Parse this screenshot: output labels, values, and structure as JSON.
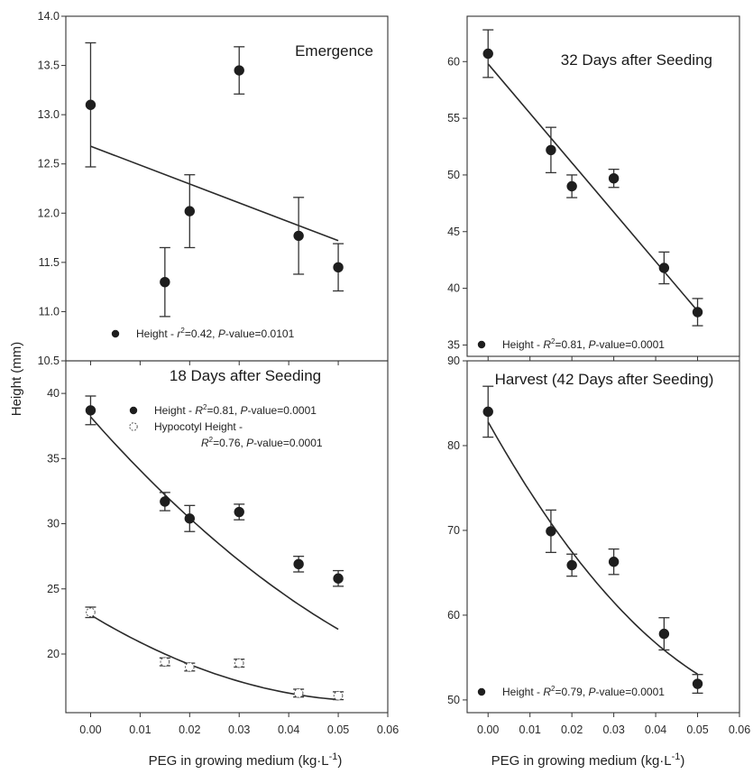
{
  "figure": {
    "ylabel": "Height (mm)",
    "xlabel_left": "PEG in growing medium (kg·L",
    "xlabel_left_sup": "-1",
    "xlabel_left_end": ")",
    "xlabel_right": "PEG in growing medium (kg·L",
    "xlabel_right_sup": "-1",
    "xlabel_right_end": ")"
  },
  "chart_data": [
    {
      "id": "emergence",
      "type": "scatter",
      "title": "Emergence",
      "x_ticks": [
        "0.00",
        "0.01",
        "0.02",
        "0.03",
        "0.04",
        "0.05",
        "0.06"
      ],
      "xlim": [
        -0.005,
        0.06
      ],
      "ylim": [
        10.5,
        14.0
      ],
      "y_ticks": [
        "10.5",
        "11.0",
        "11.5",
        "12.0",
        "12.5",
        "13.0",
        "13.5",
        "14.0"
      ],
      "series": [
        {
          "name": "Height",
          "marker": "filled",
          "x": [
            0.0,
            0.015,
            0.02,
            0.03,
            0.042,
            0.05
          ],
          "y": [
            13.1,
            11.3,
            12.02,
            13.45,
            11.77,
            11.45
          ],
          "err": [
            0.63,
            0.35,
            0.37,
            0.24,
            0.39,
            0.24
          ],
          "fit": {
            "type": "linear",
            "x0": 0.0,
            "x1": 0.05,
            "y0": 12.68,
            "y1": 11.72
          },
          "legend_prefix": "Height - ",
          "legend_r": "r",
          "legend_sup": "2",
          "legend_stat": "=0.42, ",
          "legend_p": "P",
          "legend_pval": "-value=0.0101"
        }
      ]
    },
    {
      "id": "day32",
      "type": "scatter",
      "title": "32 Days after Seeding",
      "x_ticks": [
        "0.00",
        "0.01",
        "0.02",
        "0.03",
        "0.04",
        "0.05",
        "0.06"
      ],
      "xlim": [
        -0.005,
        0.06
      ],
      "ylim": [
        34,
        64
      ],
      "y_ticks": [
        "35",
        "40",
        "45",
        "50",
        "55",
        "60"
      ],
      "series": [
        {
          "name": "Height",
          "marker": "filled",
          "x": [
            0.0,
            0.015,
            0.02,
            0.03,
            0.042,
            0.05
          ],
          "y": [
            60.7,
            52.2,
            49.0,
            49.7,
            41.8,
            37.9
          ],
          "err": [
            2.1,
            2.0,
            1.0,
            0.8,
            1.4,
            1.2
          ],
          "fit": {
            "type": "linear",
            "x0": 0.0,
            "x1": 0.05,
            "y0": 59.8,
            "y1": 38.0
          },
          "legend_prefix": "Height - ",
          "legend_r": "R",
          "legend_sup": "2",
          "legend_stat": "=0.81, ",
          "legend_p": "P",
          "legend_pval": "-value=0.0001"
        }
      ]
    },
    {
      "id": "day18",
      "type": "scatter",
      "title": "18 Days after Seeding",
      "x_ticks": [
        "0.00",
        "0.01",
        "0.02",
        "0.03",
        "0.04",
        "0.05",
        "0.06"
      ],
      "xlim": [
        -0.005,
        0.06
      ],
      "ylim": [
        15.5,
        42.5
      ],
      "y_ticks": [
        "20",
        "25",
        "30",
        "35",
        "40"
      ],
      "series": [
        {
          "name": "Height",
          "marker": "filled",
          "x": [
            0.0,
            0.015,
            0.02,
            0.03,
            0.042,
            0.05
          ],
          "y": [
            38.7,
            31.7,
            30.4,
            30.9,
            26.9,
            25.8
          ],
          "err": [
            1.1,
            0.7,
            1.0,
            0.6,
            0.6,
            0.6
          ],
          "fit": {
            "type": "quadratic",
            "coef": [
              38.2,
              -430,
              2080
            ]
          },
          "legend_prefix": "Height - ",
          "legend_r": "R",
          "legend_sup": "2",
          "legend_stat": "=0.81, ",
          "legend_p": "P",
          "legend_pval": "-value=0.0001"
        },
        {
          "name": "Hypocotyl Height",
          "marker": "open",
          "x": [
            0.0,
            0.015,
            0.02,
            0.03,
            0.042,
            0.05
          ],
          "y": [
            23.2,
            19.4,
            19.0,
            19.3,
            17.0,
            16.8
          ],
          "err": [
            0.4,
            0.3,
            0.3,
            0.3,
            0.3,
            0.3
          ],
          "fit": {
            "type": "quadratic",
            "coef": [
              23.0,
              -230,
              2000
            ]
          },
          "legend_prefix": "Hypocotyl Height -",
          "legend_r": "R",
          "legend_sup": "2",
          "legend_stat": "=0.76, ",
          "legend_p": "P",
          "legend_pval": "-value=0.0001"
        }
      ]
    },
    {
      "id": "harvest",
      "type": "scatter",
      "title": "Harvest (42 Days after Seeding)",
      "x_ticks": [
        "0.00",
        "0.01",
        "0.02",
        "0.03",
        "0.04",
        "0.05",
        "0.06"
      ],
      "xlim": [
        -0.005,
        0.06
      ],
      "ylim": [
        48.5,
        90
      ],
      "y_ticks": [
        "50",
        "60",
        "70",
        "80",
        "90"
      ],
      "series": [
        {
          "name": "Height",
          "marker": "filled",
          "x": [
            0.0,
            0.015,
            0.02,
            0.03,
            0.042,
            0.05
          ],
          "y": [
            84.0,
            69.9,
            65.9,
            66.3,
            57.8,
            51.9
          ],
          "err": [
            3.0,
            2.5,
            1.3,
            1.5,
            1.9,
            1.1
          ],
          "fit": {
            "type": "quadratic",
            "coef": [
              82.8,
              -880,
              5700
            ]
          },
          "legend_prefix": "Height - ",
          "legend_r": "R",
          "legend_sup": "2",
          "legend_stat": "=0.79, ",
          "legend_p": "P",
          "legend_pval": "-value=0.0001"
        }
      ]
    }
  ]
}
